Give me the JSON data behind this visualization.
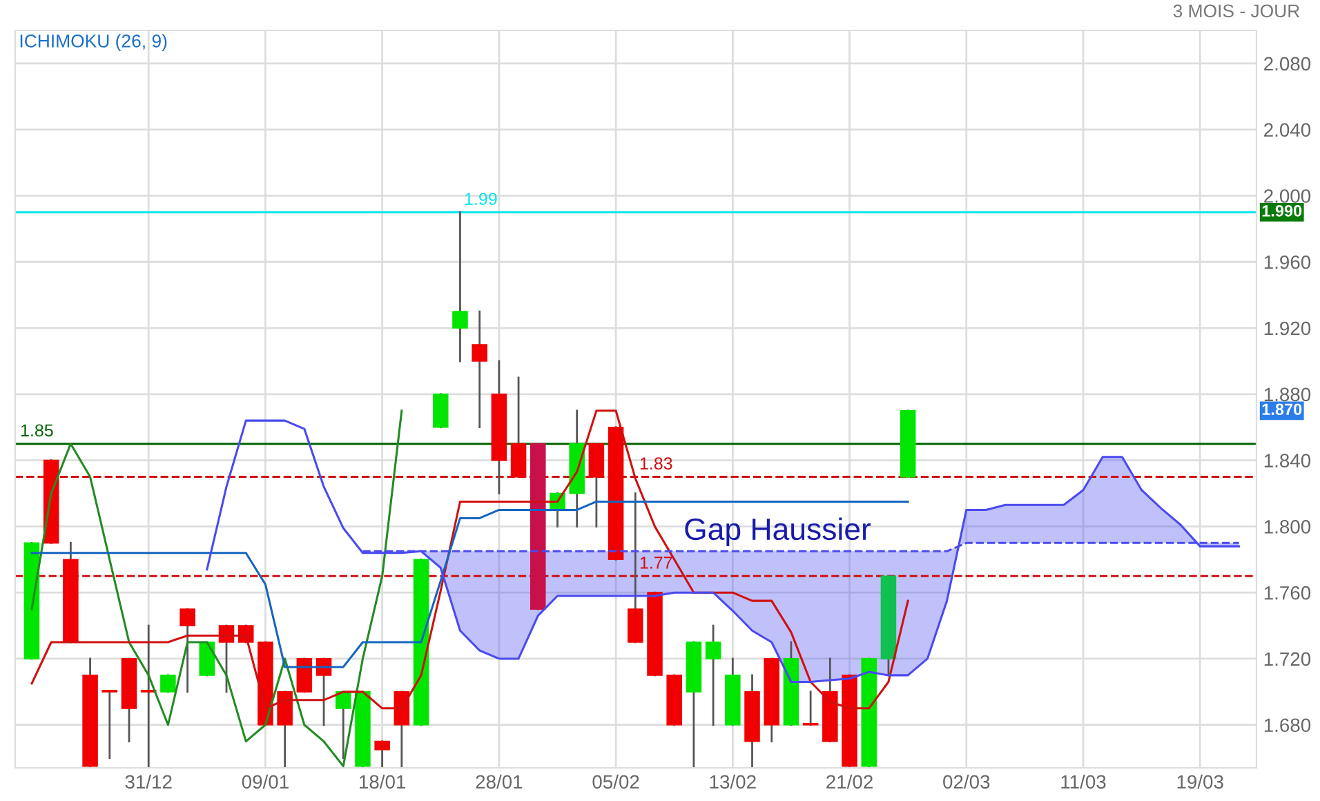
{
  "chart_data": {
    "type": "candlestick",
    "subtitle": "ICHIMOKU (26, 9)",
    "categories": [
      null,
      null,
      null,
      null,
      null,
      null,
      "31/12",
      null,
      null,
      null,
      null,
      null,
      "09/01",
      null,
      null,
      null,
      null,
      null,
      "18/01",
      null,
      null,
      null,
      null,
      null,
      "28/01",
      null,
      null,
      null,
      null,
      null,
      "05/02",
      null,
      null,
      null,
      null,
      null,
      "13/02",
      null,
      null,
      null,
      null,
      null,
      "21/02",
      null,
      null,
      null,
      null,
      null,
      "02/03",
      null,
      null,
      null,
      null,
      null,
      "11/03",
      null,
      null,
      null,
      null,
      null,
      "19/03",
      null,
      null
    ],
    "ohlc": [
      [
        1.72,
        1.79,
        1.72,
        1.79
      ],
      [
        1.84,
        1.84,
        1.79,
        1.79
      ],
      [
        1.78,
        1.79,
        1.73,
        1.73
      ],
      [
        1.71,
        1.72,
        1.655,
        1.655
      ],
      [
        1.7,
        1.7,
        1.66,
        1.7
      ],
      [
        1.72,
        1.72,
        1.67,
        1.69
      ],
      [
        1.7,
        1.74,
        1.655,
        1.7
      ],
      [
        1.7,
        1.71,
        1.7,
        1.71
      ],
      [
        1.75,
        1.75,
        1.7,
        1.74
      ],
      [
        1.71,
        1.73,
        1.71,
        1.73
      ],
      [
        1.74,
        1.74,
        1.7,
        1.73
      ],
      [
        1.74,
        1.74,
        1.73,
        1.73
      ],
      [
        1.73,
        1.73,
        1.68,
        1.68
      ],
      [
        1.7,
        1.7,
        1.655,
        1.68
      ],
      [
        1.72,
        1.72,
        1.7,
        1.7
      ],
      [
        1.72,
        1.72,
        1.68,
        1.71
      ],
      [
        1.69,
        1.7,
        1.66,
        1.7
      ],
      [
        1.655,
        1.7,
        1.655,
        1.7
      ],
      [
        1.67,
        1.67,
        1.655,
        1.665
      ],
      [
        1.7,
        1.7,
        1.655,
        1.68
      ],
      [
        1.68,
        1.78,
        1.68,
        1.78
      ],
      [
        1.86,
        1.88,
        1.86,
        1.88
      ],
      [
        1.92,
        1.99,
        1.9,
        1.93
      ],
      [
        1.91,
        1.93,
        1.86,
        1.9
      ],
      [
        1.88,
        1.9,
        1.82,
        1.84
      ],
      [
        1.85,
        1.89,
        1.83,
        1.83
      ],
      [
        1.85,
        1.85,
        1.75,
        1.75
      ],
      [
        1.81,
        1.82,
        1.8,
        1.82
      ],
      [
        1.82,
        1.87,
        1.8,
        1.85
      ],
      [
        1.85,
        1.85,
        1.8,
        1.83
      ],
      [
        1.86,
        1.86,
        1.78,
        1.78
      ],
      [
        1.75,
        1.82,
        1.73,
        1.73
      ],
      [
        1.76,
        1.76,
        1.71,
        1.71
      ],
      [
        1.71,
        1.71,
        1.68,
        1.68
      ],
      [
        1.7,
        1.73,
        1.655,
        1.73
      ],
      [
        1.72,
        1.74,
        1.68,
        1.73
      ],
      [
        1.68,
        1.72,
        1.68,
        1.71
      ],
      [
        1.7,
        1.71,
        1.655,
        1.67
      ],
      [
        1.72,
        1.72,
        1.67,
        1.68
      ],
      [
        1.68,
        1.73,
        1.68,
        1.72
      ],
      [
        1.68,
        1.7,
        1.68,
        1.68
      ],
      [
        1.7,
        1.72,
        1.67,
        1.67
      ],
      [
        1.71,
        1.71,
        1.655,
        1.655
      ],
      [
        1.655,
        1.72,
        1.655,
        1.72
      ],
      [
        1.72,
        1.77,
        1.71,
        1.77
      ],
      [
        1.83,
        1.87,
        1.83,
        1.87
      ],
      null,
      null,
      null,
      null,
      null,
      null,
      null,
      null,
      null,
      null,
      null,
      null,
      null,
      null,
      null,
      null,
      null
    ],
    "colors": [
      "#00e600",
      "#f00000",
      "#f00000",
      "#f00000",
      "#f00000",
      "#f00000",
      "#f00000",
      "#00e600",
      "#f00000",
      "#00e600",
      "#f00000",
      "#f00000",
      "#f00000",
      "#f00000",
      "#f00000",
      "#f00000",
      "#00e600",
      "#00e600",
      "#f00000",
      "#f00000",
      "#00e600",
      "#00e600",
      "#00e600",
      "#f00000",
      "#f00000",
      "#f00000",
      "#c8104a",
      "#00e600",
      "#00e600",
      "#f00000",
      "#f00000",
      "#f00000",
      "#f00000",
      "#f00000",
      "#00e600",
      "#00e600",
      "#00e600",
      "#f00000",
      "#f00000",
      "#00e600",
      "#f00000",
      "#f00000",
      "#f00000",
      "#00e600",
      "#10c050",
      "#00e600",
      null,
      null,
      null,
      null,
      null,
      null,
      null,
      null,
      null,
      null,
      null,
      null,
      null,
      null,
      null,
      null,
      null
    ],
    "series": [
      {
        "type": "line",
        "color": "#228b22",
        "values": [
          1.75,
          1.82,
          1.85,
          1.83,
          1.78,
          1.73,
          1.71,
          1.68,
          1.73,
          1.73,
          1.71,
          1.67,
          1.68,
          1.72,
          1.68,
          1.67,
          1.655,
          1.72,
          1.77,
          1.87,
          null,
          null,
          null,
          null,
          null,
          null,
          null,
          null,
          null,
          null,
          null,
          null,
          null,
          null,
          null,
          null,
          null,
          null,
          null,
          null,
          null,
          null,
          null,
          null,
          null,
          null,
          null,
          null,
          null,
          null,
          null,
          null,
          null,
          null,
          null,
          null,
          null,
          null,
          null,
          null,
          null,
          null,
          null
        ]
      },
      {
        "type": "line",
        "color": "#d01010",
        "values": [
          1.705,
          1.73,
          1.73,
          1.73,
          1.73,
          1.73,
          1.73,
          1.73,
          1.734,
          1.734,
          1.734,
          1.734,
          1.69,
          1.695,
          1.695,
          1.695,
          1.7,
          1.7,
          1.69,
          1.69,
          1.71,
          1.761,
          1.815,
          1.815,
          1.815,
          1.815,
          1.815,
          1.815,
          1.833,
          1.87,
          1.87,
          1.829,
          1.8,
          1.78,
          1.76,
          1.76,
          1.76,
          1.755,
          1.755,
          1.736,
          1.706,
          1.694,
          1.69,
          1.69,
          1.706,
          1.755,
          null,
          null,
          null,
          null,
          null,
          null,
          null,
          null,
          null,
          null,
          null,
          null,
          null,
          null,
          null,
          null,
          null
        ]
      },
      {
        "type": "line",
        "color": "#1565c0",
        "values": [
          1.784,
          1.784,
          1.784,
          1.784,
          1.784,
          1.784,
          1.784,
          1.784,
          1.784,
          1.784,
          1.784,
          1.784,
          1.765,
          1.715,
          1.715,
          1.715,
          1.715,
          1.73,
          1.73,
          1.73,
          1.73,
          1.767,
          1.805,
          1.805,
          1.81,
          1.81,
          1.81,
          1.81,
          1.81,
          1.815,
          1.815,
          1.815,
          1.815,
          1.815,
          1.815,
          1.815,
          1.815,
          1.815,
          1.815,
          1.815,
          1.815,
          1.815,
          1.815,
          1.815,
          1.815,
          1.815,
          null,
          null,
          null,
          null,
          null,
          null,
          null,
          null,
          null,
          null,
          null,
          null,
          null,
          null,
          null,
          null,
          null
        ]
      },
      {
        "type": "line",
        "color": "#4a4af0",
        "values": [
          null,
          null,
          null,
          null,
          null,
          null,
          null,
          null,
          null,
          1.774,
          1.824,
          1.864,
          1.864,
          1.864,
          1.859,
          1.824,
          1.799,
          1.784,
          1.784,
          1.784,
          1.785,
          1.775,
          1.737,
          1.725,
          1.72,
          1.72,
          1.746,
          1.758,
          1.758,
          1.758,
          1.758,
          1.758,
          1.758,
          1.76,
          1.76,
          1.76,
          1.749,
          1.737,
          1.73,
          1.706,
          1.706,
          1.707,
          1.708,
          1.712,
          1.71,
          1.71,
          1.72,
          1.755,
          1.81,
          1.81,
          1.813,
          1.813,
          1.813,
          1.813,
          1.822,
          1.842,
          1.842,
          1.822,
          1.811,
          1.801,
          1.788,
          1.788,
          1.788
        ],
        "upper": [
          null,
          null,
          null,
          null,
          null,
          null,
          null,
          null,
          null,
          null,
          null,
          null,
          null,
          null,
          null,
          null,
          null,
          1.784,
          1.784,
          1.784,
          1.785,
          1.775,
          1.737,
          1.725,
          1.72,
          1.72,
          1.746,
          1.758,
          1.758,
          1.758,
          1.758,
          1.758,
          1.758,
          1.76,
          1.76,
          1.76,
          1.749,
          1.737,
          1.73,
          1.706,
          1.706,
          1.707,
          1.708,
          1.712,
          1.71,
          1.71,
          1.72,
          1.755,
          1.81,
          1.81,
          1.813,
          1.813,
          1.813,
          1.813,
          1.822,
          1.842,
          1.842,
          1.822,
          1.811,
          1.801,
          1.788,
          1.788,
          1.788
        ],
        "lower": [
          null,
          null,
          null,
          null,
          null,
          null,
          null,
          null,
          null,
          null,
          null,
          null,
          null,
          null,
          null,
          null,
          null,
          1.785,
          1.785,
          1.785,
          1.785,
          1.785,
          1.785,
          1.785,
          1.785,
          1.785,
          1.785,
          1.785,
          1.785,
          1.785,
          1.785,
          1.785,
          1.785,
          1.785,
          1.785,
          1.785,
          1.785,
          1.785,
          1.785,
          1.785,
          1.785,
          1.785,
          1.785,
          1.785,
          1.785,
          1.785,
          1.785,
          1.785,
          1.79,
          1.79,
          1.79,
          1.79,
          1.79,
          1.79,
          1.79,
          1.79,
          1.79,
          1.79,
          1.79,
          1.79,
          1.79,
          1.79,
          1.79
        ]
      },
      {
        "type": "line",
        "color": "#4a4af0",
        "line_style": "dashed",
        "values": [
          null,
          null,
          null,
          null,
          null,
          null,
          null,
          null,
          null,
          null,
          null,
          null,
          null,
          null,
          null,
          null,
          null,
          1.785,
          1.785,
          1.785,
          1.785,
          1.785,
          1.785,
          1.785,
          1.785,
          1.785,
          1.785,
          1.785,
          1.785,
          1.785,
          1.785,
          1.785,
          1.785,
          1.785,
          1.785,
          1.785,
          1.785,
          1.785,
          1.785,
          1.785,
          1.785,
          1.785,
          1.785,
          1.785,
          1.785,
          1.785,
          1.785,
          1.785,
          1.79,
          1.79,
          1.79,
          1.79,
          1.79,
          1.79,
          1.79,
          1.79,
          1.79,
          1.79,
          1.79,
          1.79,
          1.79,
          1.79,
          1.79
        ]
      }
    ],
    "ref_lines": [
      {
        "axis": "y",
        "value": 1.85,
        "label": "1.85",
        "color": "#006400"
      },
      {
        "axis": "y",
        "value": 1.99,
        "label": "1.99",
        "color": "#00e5ee"
      },
      {
        "axis": "y",
        "value": 1.83,
        "label": "1.83",
        "color": "#d01010",
        "line_style": "dashed"
      },
      {
        "axis": "y",
        "value": 1.77,
        "label": "1.77",
        "color": "#d01010",
        "line_style": "dashed"
      }
    ],
    "annotations": [
      "Gap Haussier",
      "1.990",
      "1.870",
      "3 MOIS - JOUR"
    ],
    "ylim": [
      1.654,
      2.1
    ],
    "yticks": [
      {
        "value": 1.68,
        "label": "1.680"
      },
      {
        "value": 1.72,
        "label": "1.720"
      },
      {
        "value": 1.76,
        "label": "1.760"
      },
      {
        "value": 1.8,
        "label": "1.800"
      },
      {
        "value": 1.84,
        "label": "1.840"
      },
      {
        "value": 1.88,
        "label": "1.880"
      },
      {
        "value": 1.92,
        "label": "1.920"
      },
      {
        "value": 1.96,
        "label": "1.960"
      },
      {
        "value": 2.0,
        "label": "2.000"
      },
      {
        "value": 2.04,
        "label": "2.040"
      },
      {
        "value": 2.08,
        "label": "2.080"
      }
    ],
    "grid": true
  }
}
